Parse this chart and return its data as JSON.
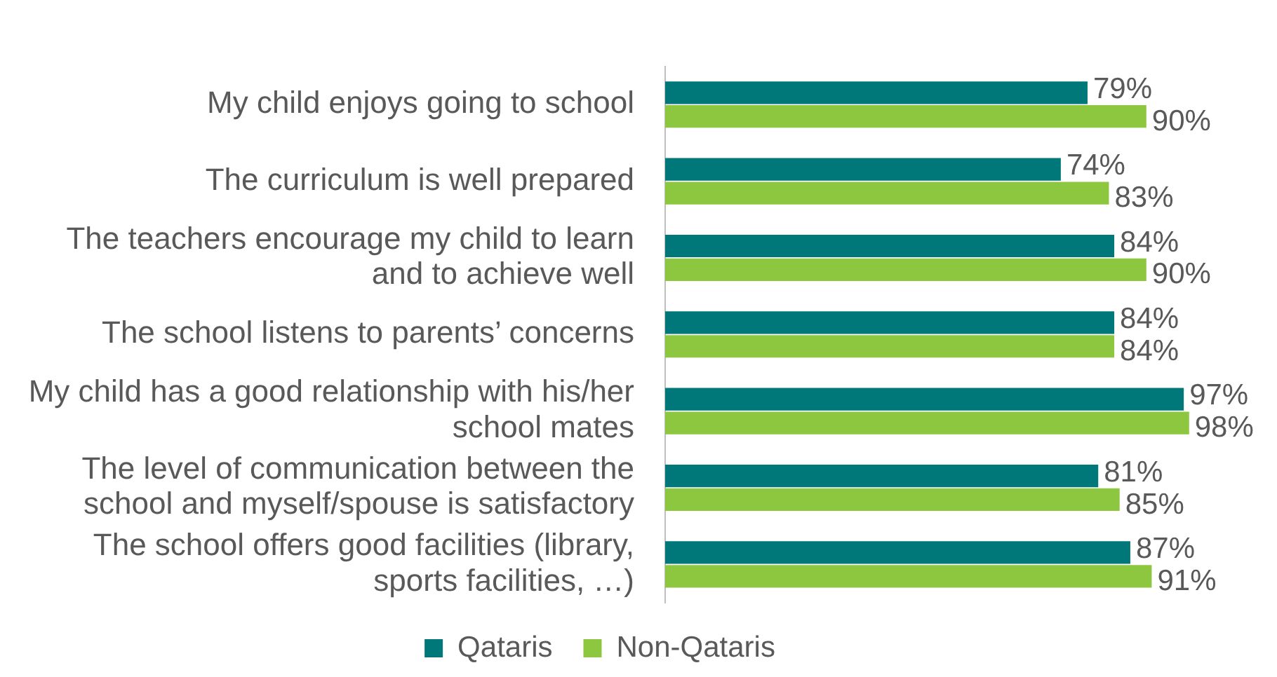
{
  "chart_data": {
    "type": "bar",
    "orientation": "horizontal",
    "categories": [
      "My child enjoys going to school",
      "The curriculum is well prepared",
      "The teachers encourage my child to learn and to achieve well",
      "The school listens to parents’ concerns",
      "My child has a good relationship with his/her school mates",
      "The level of communication between the school and myself/spouse is satisfactory",
      "The school offers good facilities (library, sports facilities, …)"
    ],
    "series": [
      {
        "name": "Qataris",
        "color": "#00787a",
        "values": [
          79,
          74,
          84,
          84,
          97,
          81,
          87
        ],
        "value_labels": [
          "79%",
          "74%",
          "84%",
          "84%",
          "97%",
          "81%",
          "87%"
        ]
      },
      {
        "name": "Non-Qataris",
        "color": "#8dc63f",
        "values": [
          90,
          83,
          90,
          84,
          98,
          85,
          91
        ],
        "value_labels": [
          "90%",
          "83%",
          "90%",
          "84%",
          "98%",
          "85%",
          "91%"
        ]
      }
    ],
    "legend": "bottom"
  }
}
